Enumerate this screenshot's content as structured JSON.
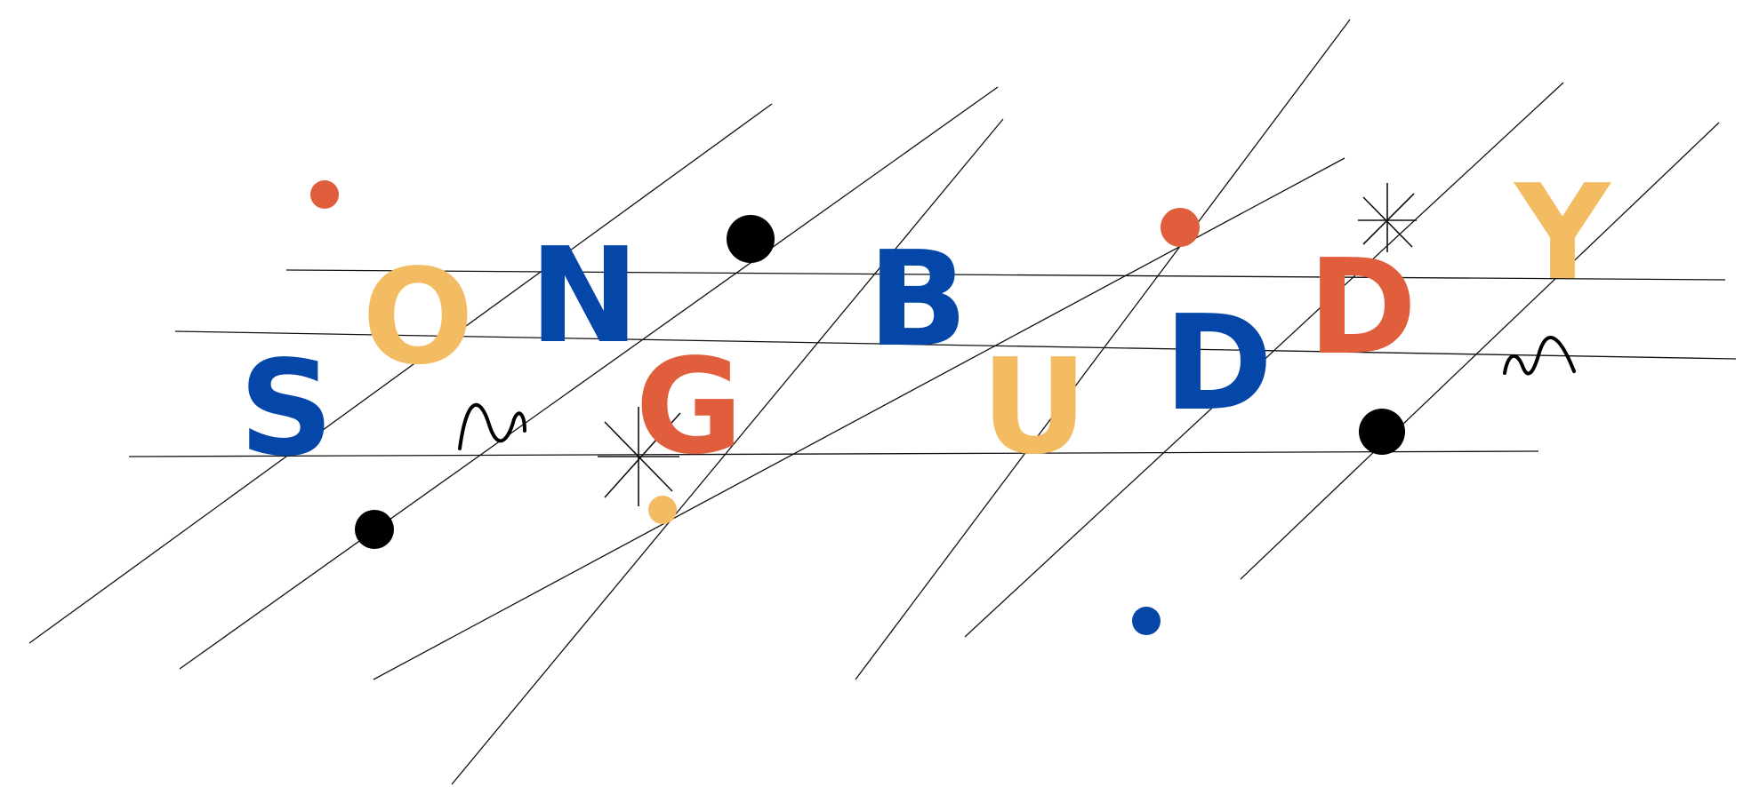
{
  "logo": {
    "letters": [
      "S",
      "O",
      "N",
      "G",
      "B",
      "U",
      "D",
      "D",
      "Y"
    ]
  },
  "colors": {
    "blue": "#0447A8",
    "yellow": "#F4BC62",
    "orange": "#E05E3B",
    "black": "#000000",
    "line": "#111111"
  },
  "decorations": {
    "icons": [
      "squiggle-icon",
      "star-burst-icon",
      "dot-icon"
    ]
  }
}
